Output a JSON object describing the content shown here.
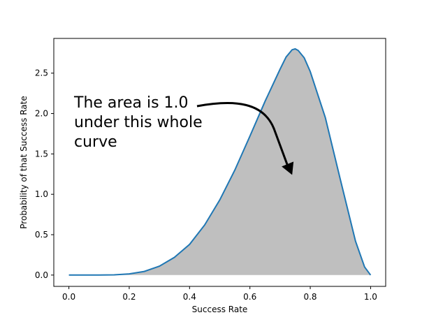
{
  "chart_data": {
    "type": "area",
    "xlabel": "Success Rate",
    "ylabel": "Probability of that Success Rate",
    "xlim": [
      -0.05,
      1.05
    ],
    "ylim": [
      -0.14,
      2.93
    ],
    "xticks": [
      0.0,
      0.2,
      0.4,
      0.6,
      0.8,
      1.0
    ],
    "xtick_labels": [
      "0.0",
      "0.2",
      "0.4",
      "0.6",
      "0.8",
      "1.0"
    ],
    "yticks": [
      0.0,
      0.5,
      1.0,
      1.5,
      2.0,
      2.5
    ],
    "ytick_labels": [
      "0.0",
      "0.5",
      "1.0",
      "1.5",
      "2.0",
      "2.5"
    ],
    "grid": false,
    "series": [
      {
        "x": [
          0,
          0.05,
          0.1,
          0.15,
          0.2,
          0.25,
          0.3,
          0.35,
          0.4,
          0.45,
          0.5,
          0.55,
          0.6,
          0.65,
          0.7,
          0.72,
          0.74,
          0.75,
          0.76,
          0.78,
          0.8,
          0.85,
          0.9,
          0.95,
          0.98,
          1.0
        ],
        "values": [
          0.0,
          0.0,
          0.0,
          0.003,
          0.015,
          0.045,
          0.11,
          0.22,
          0.38,
          0.62,
          0.93,
          1.3,
          1.72,
          2.15,
          2.55,
          2.7,
          2.79,
          2.8,
          2.78,
          2.69,
          2.52,
          1.95,
          1.18,
          0.42,
          0.1,
          0.0
        ],
        "color": "#1f77b4",
        "fill_color": "#bfbfbf"
      }
    ],
    "annotations": [
      {
        "lines": [
          "The area is 1.0",
          "under this whole",
          "curve"
        ],
        "arrow_tip": [
          0.74,
          1.24
        ]
      }
    ]
  }
}
